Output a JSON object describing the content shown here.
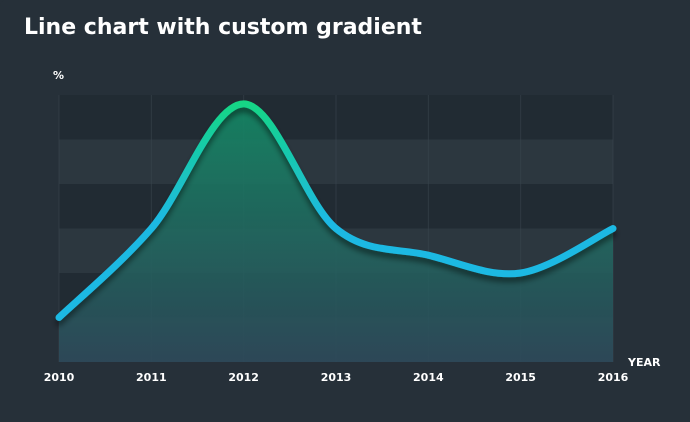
{
  "chart_data": {
    "type": "area",
    "title": "Line chart with custom gradient",
    "xlabel": "YEAR",
    "ylabel": "%",
    "x": [
      "2010",
      "2011",
      "2012",
      "2013",
      "2014",
      "2015",
      "2016"
    ],
    "series": [
      {
        "values": [
          10,
          30,
          58,
          30,
          24,
          20,
          30
        ]
      }
    ],
    "ylim": [
      0,
      60
    ],
    "grid": true,
    "legend": "none",
    "colors": {
      "background": "#263039",
      "band_dark": "#212b33",
      "band_light": "#2c373f",
      "line_top": "#13d683",
      "line_bottom": "#1fb9e3",
      "area_top": "#138a65",
      "area_bottom": "#2d4a5b",
      "gridline": "#3a454e"
    }
  }
}
